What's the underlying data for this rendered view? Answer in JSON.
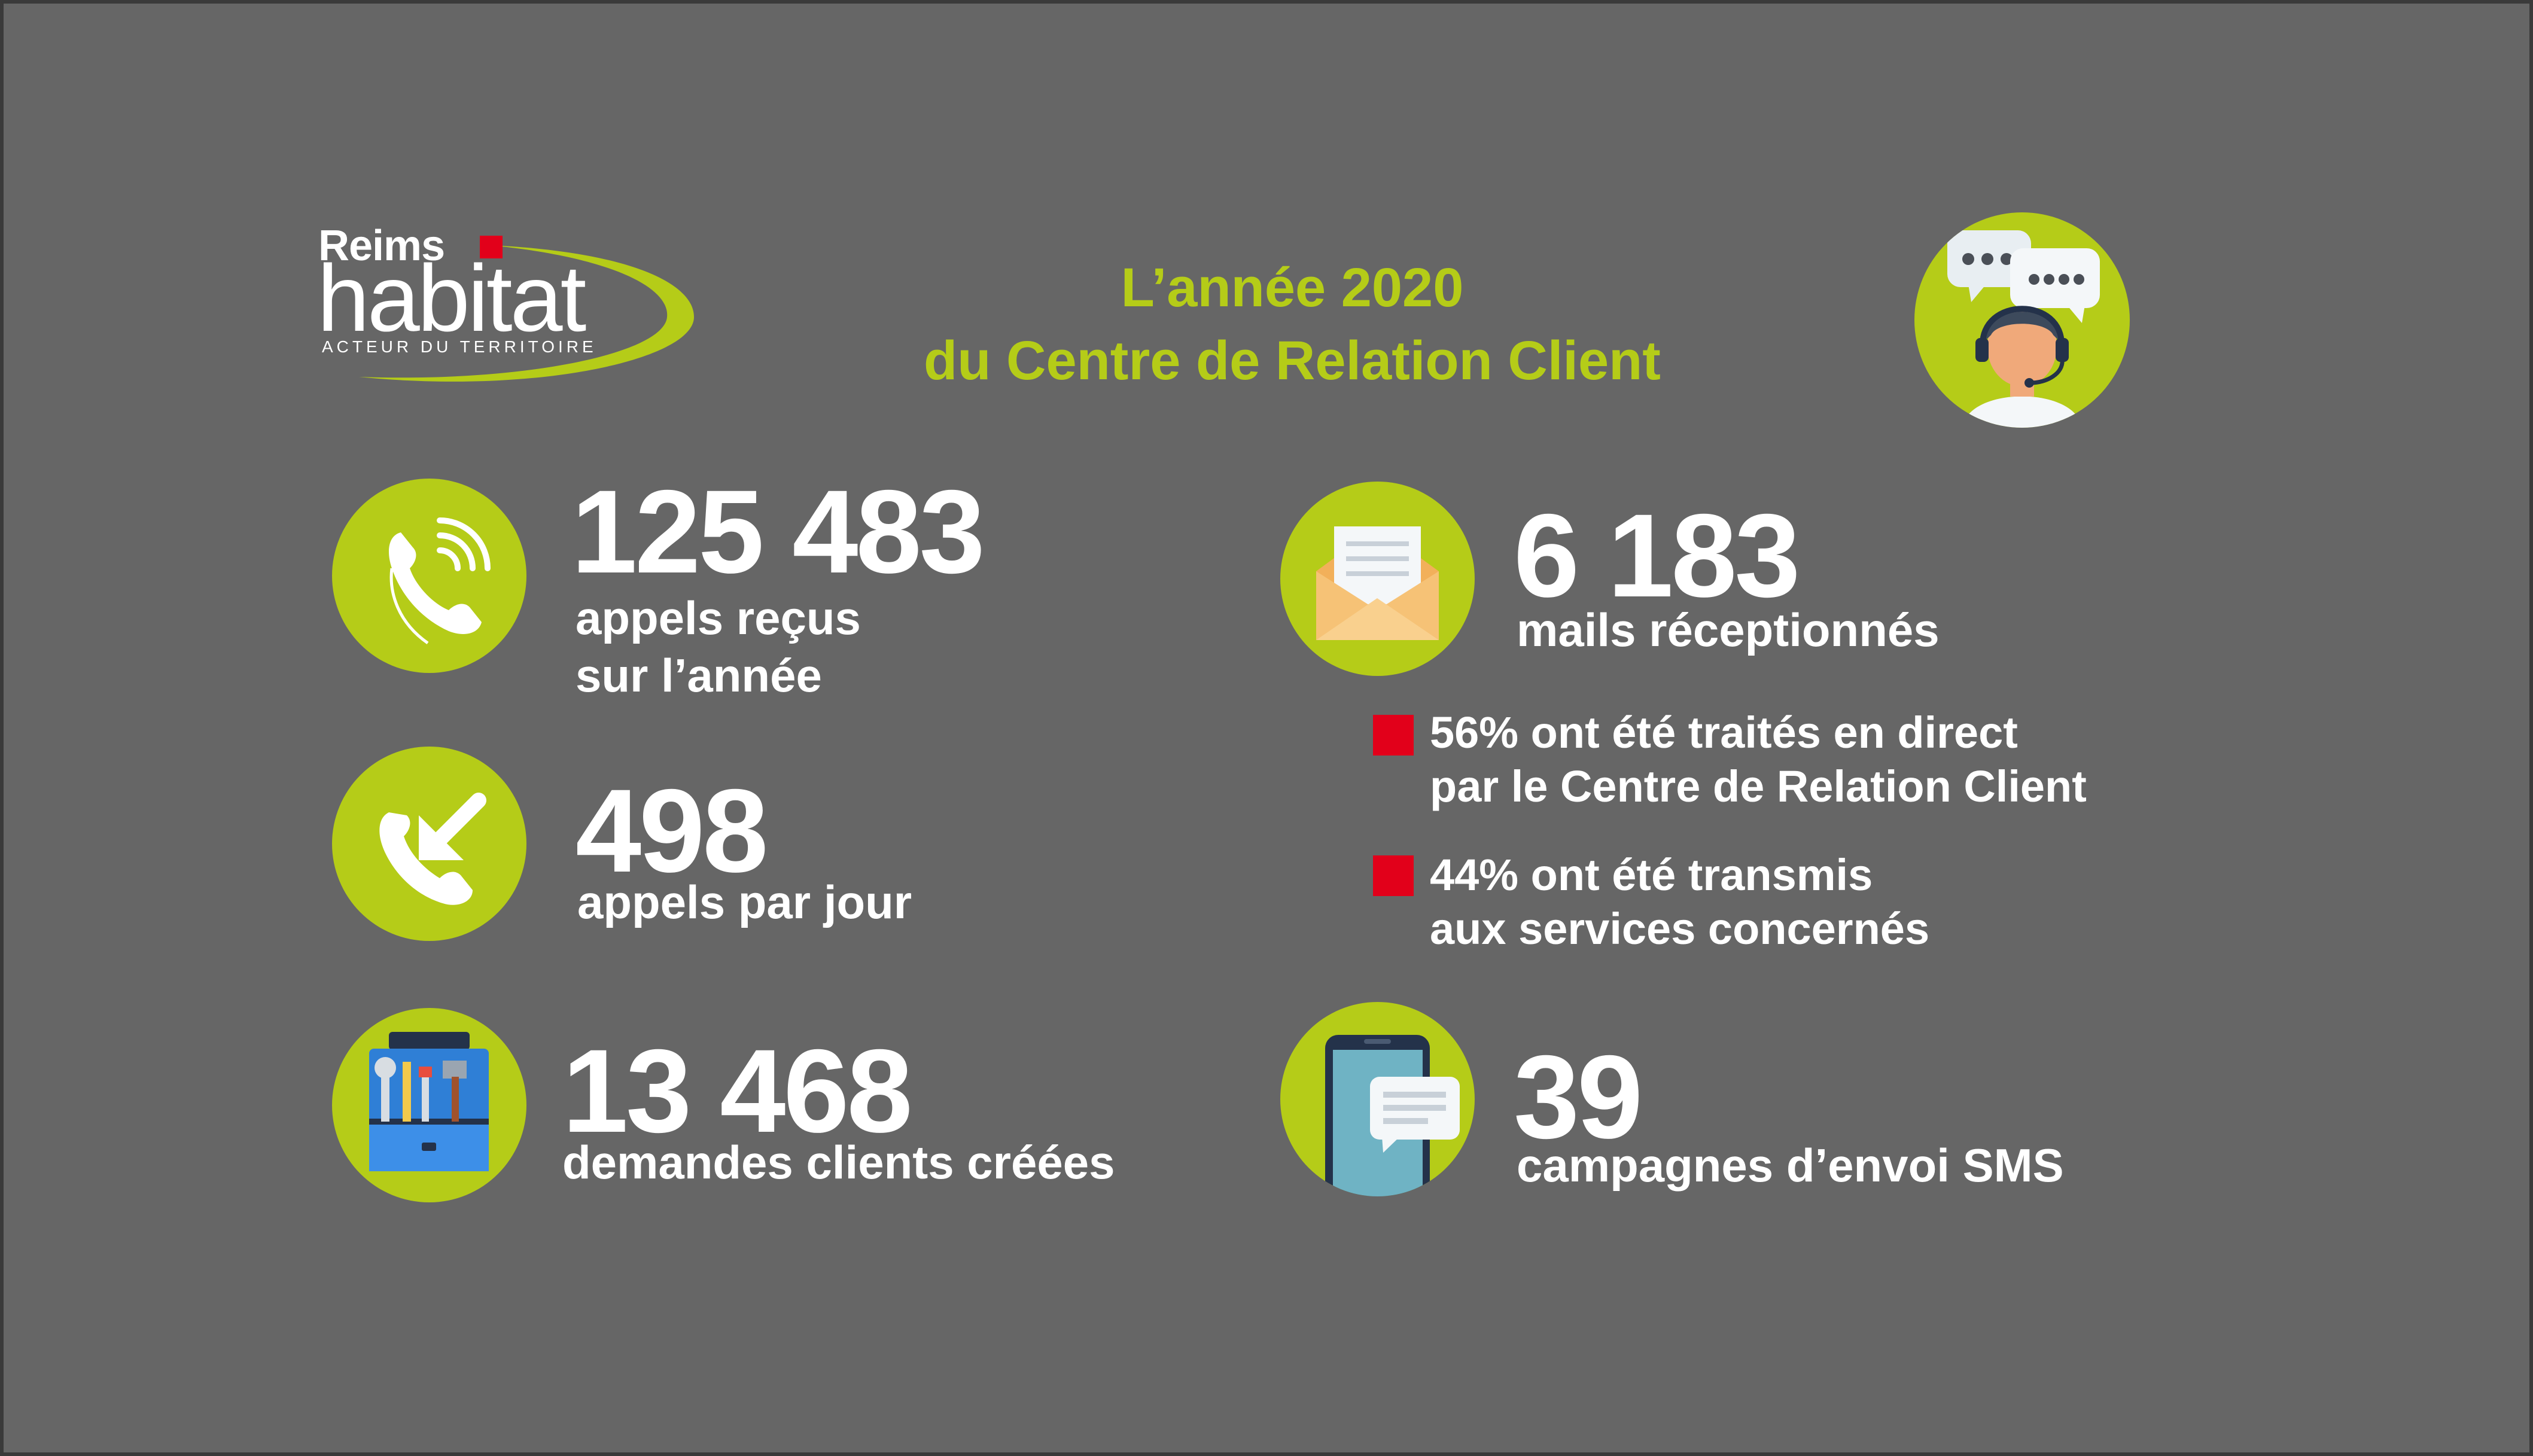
{
  "logo": {
    "line1": "Reims",
    "line2": "habitat",
    "tagline": "ACTEUR DU TERRITOIRE",
    "accent_color": "#e2001a",
    "swoosh_color": "#b5cc18"
  },
  "title": {
    "line1": "L’année 2020",
    "line2": "du Centre de Relation Client"
  },
  "colors": {
    "background": "#666666",
    "accent_green": "#b5cc18",
    "bullet_red": "#e2001a"
  },
  "stats_left": [
    {
      "icon": "phone-ringing-icon",
      "number": "125 483",
      "label_lines": [
        "appels reçus",
        "sur l’année"
      ]
    },
    {
      "icon": "incoming-call-icon",
      "number": "498",
      "label_lines": [
        "appels par jour"
      ]
    },
    {
      "icon": "toolbox-icon",
      "number": "13 468",
      "label_lines": [
        "demandes clients créées"
      ]
    }
  ],
  "stats_right": [
    {
      "icon": "envelope-icon",
      "number": "6 183",
      "label_lines": [
        "mails réceptionnés"
      ]
    },
    {
      "icon": "smartphone-sms-icon",
      "number": "39",
      "label_lines": [
        "campagnes d’envoi SMS"
      ]
    }
  ],
  "mail_breakdown": [
    {
      "lines": [
        "56% ont été traités en direct",
        "par le Centre de Relation Client"
      ]
    },
    {
      "lines": [
        "44% ont été transmis",
        "aux services concernés"
      ]
    }
  ],
  "header_icon": "customer-service-agent-icon"
}
